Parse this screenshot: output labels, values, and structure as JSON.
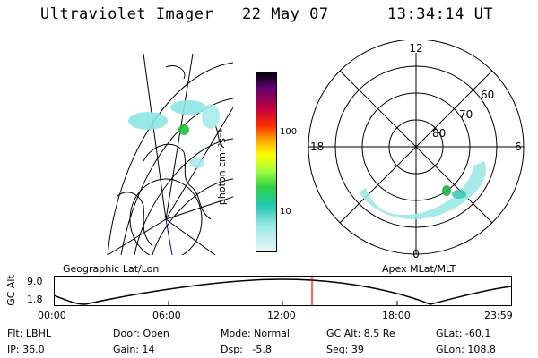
{
  "header": {
    "instrument": "Ultraviolet Imager",
    "date": "22 May 07",
    "time": "13:34:14 UT"
  },
  "colorbar": {
    "unit_label": "photon cm⁻²s⁻¹",
    "ticks": [
      "100",
      "10"
    ]
  },
  "polar_plot": {
    "lat_labels": [
      "80",
      "70",
      "60"
    ],
    "mlt_labels": {
      "top": "12",
      "left": "18",
      "right": "6",
      "bottom": "0"
    }
  },
  "panels": {
    "left_label": "Geographic Lat/Lon",
    "right_label": "Apex MLat/MLT"
  },
  "timeline": {
    "ylabel": "GC Alt",
    "y_ticks": [
      "9.0",
      "1.8"
    ],
    "x_ticks": [
      "00:00",
      "06:00",
      "12:00",
      "18:00",
      "23:59"
    ],
    "marker_time": "13:34",
    "marker_color": "#ff0000"
  },
  "info": {
    "flt": "Flt: LBHL",
    "ip": "IP: 36.0",
    "door": "Door: Open",
    "gain": "Gain: 14",
    "mode": "Mode: Normal",
    "dsp": "Dsp:   -5.8",
    "gcalt": "GC Alt: 8.5 Re",
    "seq": "Seq: 39",
    "glat": "GLat: -60.1",
    "glon": "GLon: 108.8"
  }
}
